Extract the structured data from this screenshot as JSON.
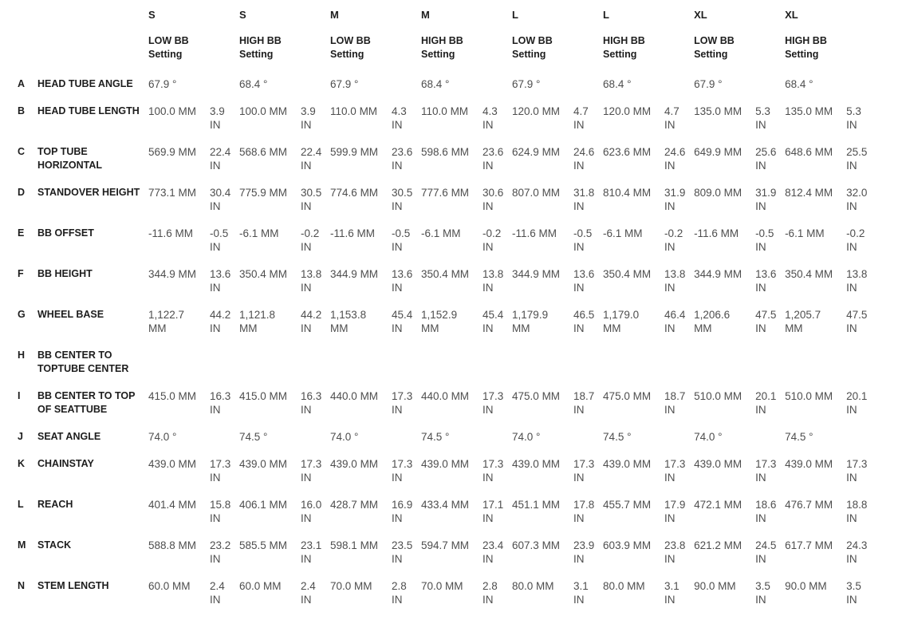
{
  "chart_data": {
    "type": "table",
    "title": "",
    "units": [
      "MM",
      "IN"
    ],
    "column_groups": [
      {
        "size": "S",
        "setting": "LOW BB Setting"
      },
      {
        "size": "S",
        "setting": "HIGH BB Setting"
      },
      {
        "size": "M",
        "setting": "LOW BB Setting"
      },
      {
        "size": "M",
        "setting": "HIGH BB Setting"
      },
      {
        "size": "L",
        "setting": "LOW BB Setting"
      },
      {
        "size": "L",
        "setting": "HIGH BB Setting"
      },
      {
        "size": "XL",
        "setting": "LOW BB Setting"
      },
      {
        "size": "XL",
        "setting": "HIGH BB Setting"
      }
    ],
    "rows": [
      {
        "letter": "A",
        "label": "HEAD TUBE ANGLE",
        "label_lines": [
          "HEAD TUBE ANGLE"
        ],
        "cells": [
          {
            "mm": "67.9 °",
            "in": ""
          },
          {
            "mm": "68.4 °",
            "in": ""
          },
          {
            "mm": "67.9 °",
            "in": ""
          },
          {
            "mm": "68.4 °",
            "in": ""
          },
          {
            "mm": "67.9 °",
            "in": ""
          },
          {
            "mm": "68.4 °",
            "in": ""
          },
          {
            "mm": "67.9 °",
            "in": ""
          },
          {
            "mm": "68.4 °",
            "in": ""
          }
        ]
      },
      {
        "letter": "B",
        "label": "HEAD TUBE LENGTH",
        "label_lines": [
          "HEAD TUBE LENGTH"
        ],
        "cells": [
          {
            "mm": "100.0 MM",
            "in": "3.9 IN"
          },
          {
            "mm": "100.0 MM",
            "in": "3.9 IN"
          },
          {
            "mm": "110.0 MM",
            "in": "4.3 IN"
          },
          {
            "mm": "110.0 MM",
            "in": "4.3 IN"
          },
          {
            "mm": "120.0 MM",
            "in": "4.7 IN"
          },
          {
            "mm": "120.0 MM",
            "in": "4.7 IN"
          },
          {
            "mm": "135.0 MM",
            "in": "5.3 IN"
          },
          {
            "mm": "135.0 MM",
            "in": "5.3 IN"
          }
        ]
      },
      {
        "letter": "C",
        "label": "TOP TUBE HORIZONTAL",
        "label_lines": [
          "TOP TUBE",
          "HORIZONTAL"
        ],
        "cells": [
          {
            "mm": "569.9 MM",
            "in": "22.4 IN"
          },
          {
            "mm": "568.6 MM",
            "in": "22.4 IN"
          },
          {
            "mm": "599.9 MM",
            "in": "23.6 IN"
          },
          {
            "mm": "598.6 MM",
            "in": "23.6 IN"
          },
          {
            "mm": "624.9 MM",
            "in": "24.6 IN"
          },
          {
            "mm": "623.6 MM",
            "in": "24.6 IN"
          },
          {
            "mm": "649.9 MM",
            "in": "25.6 IN"
          },
          {
            "mm": "648.6 MM",
            "in": "25.5 IN"
          }
        ]
      },
      {
        "letter": "D",
        "label": "STANDOVER HEIGHT",
        "label_lines": [
          "STANDOVER HEIGHT"
        ],
        "cells": [
          {
            "mm": "773.1 MM",
            "in": "30.4 IN"
          },
          {
            "mm": "775.9 MM",
            "in": "30.5 IN"
          },
          {
            "mm": "774.6 MM",
            "in": "30.5 IN"
          },
          {
            "mm": "777.6 MM",
            "in": "30.6 IN"
          },
          {
            "mm": "807.0 MM",
            "in": "31.8 IN"
          },
          {
            "mm": "810.4 MM",
            "in": "31.9 IN"
          },
          {
            "mm": "809.0 MM",
            "in": "31.9 IN"
          },
          {
            "mm": "812.4 MM",
            "in": "32.0 IN"
          }
        ]
      },
      {
        "letter": "E",
        "label": "BB OFFSET",
        "label_lines": [
          "BB OFFSET"
        ],
        "cells": [
          {
            "mm": "-11.6 MM",
            "in": "-0.5 IN"
          },
          {
            "mm": "-6.1 MM",
            "in": "-0.2 IN"
          },
          {
            "mm": "-11.6 MM",
            "in": "-0.5 IN"
          },
          {
            "mm": "-6.1 MM",
            "in": "-0.2 IN"
          },
          {
            "mm": "-11.6 MM",
            "in": "-0.5 IN"
          },
          {
            "mm": "-6.1 MM",
            "in": "-0.2 IN"
          },
          {
            "mm": "-11.6 MM",
            "in": "-0.5 IN"
          },
          {
            "mm": "-6.1 MM",
            "in": "-0.2 IN"
          }
        ]
      },
      {
        "letter": "F",
        "label": "BB HEIGHT",
        "label_lines": [
          "BB HEIGHT"
        ],
        "cells": [
          {
            "mm": "344.9 MM",
            "in": "13.6 IN"
          },
          {
            "mm": "350.4 MM",
            "in": "13.8 IN"
          },
          {
            "mm": "344.9 MM",
            "in": "13.6 IN"
          },
          {
            "mm": "350.4 MM",
            "in": "13.8 IN"
          },
          {
            "mm": "344.9 MM",
            "in": "13.6 IN"
          },
          {
            "mm": "350.4 MM",
            "in": "13.8 IN"
          },
          {
            "mm": "344.9 MM",
            "in": "13.6 IN"
          },
          {
            "mm": "350.4 MM",
            "in": "13.8 IN"
          }
        ]
      },
      {
        "letter": "G",
        "label": "WHEEL BASE",
        "label_lines": [
          "WHEEL BASE"
        ],
        "cells": [
          {
            "mm": "1,122.7 MM",
            "in": "44.2 IN"
          },
          {
            "mm": "1,121.8 MM",
            "in": "44.2 IN"
          },
          {
            "mm": "1,153.8 MM",
            "in": "45.4 IN"
          },
          {
            "mm": "1,152.9 MM",
            "in": "45.4 IN"
          },
          {
            "mm": "1,179.9 MM",
            "in": "46.5 IN"
          },
          {
            "mm": "1,179.0 MM",
            "in": "46.4 IN"
          },
          {
            "mm": "1,206.6 MM",
            "in": "47.5 IN"
          },
          {
            "mm": "1,205.7 MM",
            "in": "47.5 IN"
          }
        ]
      },
      {
        "letter": "H",
        "label": "BB CENTER TO TOPTUBE CENTER",
        "label_lines": [
          "BB CENTER TO",
          "TOPTUBE CENTER"
        ],
        "cells": [
          {
            "mm": "",
            "in": ""
          },
          {
            "mm": "",
            "in": ""
          },
          {
            "mm": "",
            "in": ""
          },
          {
            "mm": "",
            "in": ""
          },
          {
            "mm": "",
            "in": ""
          },
          {
            "mm": "",
            "in": ""
          },
          {
            "mm": "",
            "in": ""
          },
          {
            "mm": "",
            "in": ""
          }
        ]
      },
      {
        "letter": "I",
        "label": "BB CENTER TO TOP OF SEATTUBE",
        "label_lines": [
          "BB CENTER TO TOP",
          "OF SEATTUBE"
        ],
        "cells": [
          {
            "mm": "415.0 MM",
            "in": "16.3 IN"
          },
          {
            "mm": "415.0 MM",
            "in": "16.3 IN"
          },
          {
            "mm": "440.0 MM",
            "in": "17.3 IN"
          },
          {
            "mm": "440.0 MM",
            "in": "17.3 IN"
          },
          {
            "mm": "475.0 MM",
            "in": "18.7 IN"
          },
          {
            "mm": "475.0 MM",
            "in": "18.7 IN"
          },
          {
            "mm": "510.0 MM",
            "in": "20.1 IN"
          },
          {
            "mm": "510.0 MM",
            "in": "20.1 IN"
          }
        ]
      },
      {
        "letter": "J",
        "label": "SEAT ANGLE",
        "label_lines": [
          "SEAT ANGLE"
        ],
        "cells": [
          {
            "mm": "74.0 °",
            "in": ""
          },
          {
            "mm": "74.5 °",
            "in": ""
          },
          {
            "mm": "74.0 °",
            "in": ""
          },
          {
            "mm": "74.5 °",
            "in": ""
          },
          {
            "mm": "74.0 °",
            "in": ""
          },
          {
            "mm": "74.5 °",
            "in": ""
          },
          {
            "mm": "74.0 °",
            "in": ""
          },
          {
            "mm": "74.5 °",
            "in": ""
          }
        ]
      },
      {
        "letter": "K",
        "label": "CHAINSTAY",
        "label_lines": [
          "CHAINSTAY"
        ],
        "cells": [
          {
            "mm": "439.0 MM",
            "in": "17.3 IN"
          },
          {
            "mm": "439.0 MM",
            "in": "17.3 IN"
          },
          {
            "mm": "439.0 MM",
            "in": "17.3 IN"
          },
          {
            "mm": "439.0 MM",
            "in": "17.3 IN"
          },
          {
            "mm": "439.0 MM",
            "in": "17.3 IN"
          },
          {
            "mm": "439.0 MM",
            "in": "17.3 IN"
          },
          {
            "mm": "439.0 MM",
            "in": "17.3 IN"
          },
          {
            "mm": "439.0 MM",
            "in": "17.3 IN"
          }
        ]
      },
      {
        "letter": "L",
        "label": "REACH",
        "label_lines": [
          "REACH"
        ],
        "cells": [
          {
            "mm": "401.4 MM",
            "in": "15.8 IN"
          },
          {
            "mm": "406.1 MM",
            "in": "16.0 IN"
          },
          {
            "mm": "428.7 MM",
            "in": "16.9 IN"
          },
          {
            "mm": "433.4 MM",
            "in": "17.1 IN"
          },
          {
            "mm": "451.1 MM",
            "in": "17.8 IN"
          },
          {
            "mm": "455.7 MM",
            "in": "17.9 IN"
          },
          {
            "mm": "472.1 MM",
            "in": "18.6 IN"
          },
          {
            "mm": "476.7 MM",
            "in": "18.8 IN"
          }
        ]
      },
      {
        "letter": "M",
        "label": "STACK",
        "label_lines": [
          "STACK"
        ],
        "cells": [
          {
            "mm": "588.8 MM",
            "in": "23.2 IN"
          },
          {
            "mm": "585.5 MM",
            "in": "23.1 IN"
          },
          {
            "mm": "598.1 MM",
            "in": "23.5 IN"
          },
          {
            "mm": "594.7 MM",
            "in": "23.4 IN"
          },
          {
            "mm": "607.3 MM",
            "in": "23.9 IN"
          },
          {
            "mm": "603.9 MM",
            "in": "23.8 IN"
          },
          {
            "mm": "621.2 MM",
            "in": "24.5 IN"
          },
          {
            "mm": "617.7 MM",
            "in": "24.3 IN"
          }
        ]
      },
      {
        "letter": "N",
        "label": "STEM LENGTH",
        "label_lines": [
          "STEM LENGTH"
        ],
        "cells": [
          {
            "mm": "60.0 MM",
            "in": "2.4 IN"
          },
          {
            "mm": "60.0 MM",
            "in": "2.4 IN"
          },
          {
            "mm": "70.0 MM",
            "in": "2.8 IN"
          },
          {
            "mm": "70.0 MM",
            "in": "2.8 IN"
          },
          {
            "mm": "80.0 MM",
            "in": "3.1 IN"
          },
          {
            "mm": "80.0 MM",
            "in": "3.1 IN"
          },
          {
            "mm": "90.0 MM",
            "in": "3.5 IN"
          },
          {
            "mm": "90.0 MM",
            "in": "3.5 IN"
          }
        ]
      }
    ]
  }
}
